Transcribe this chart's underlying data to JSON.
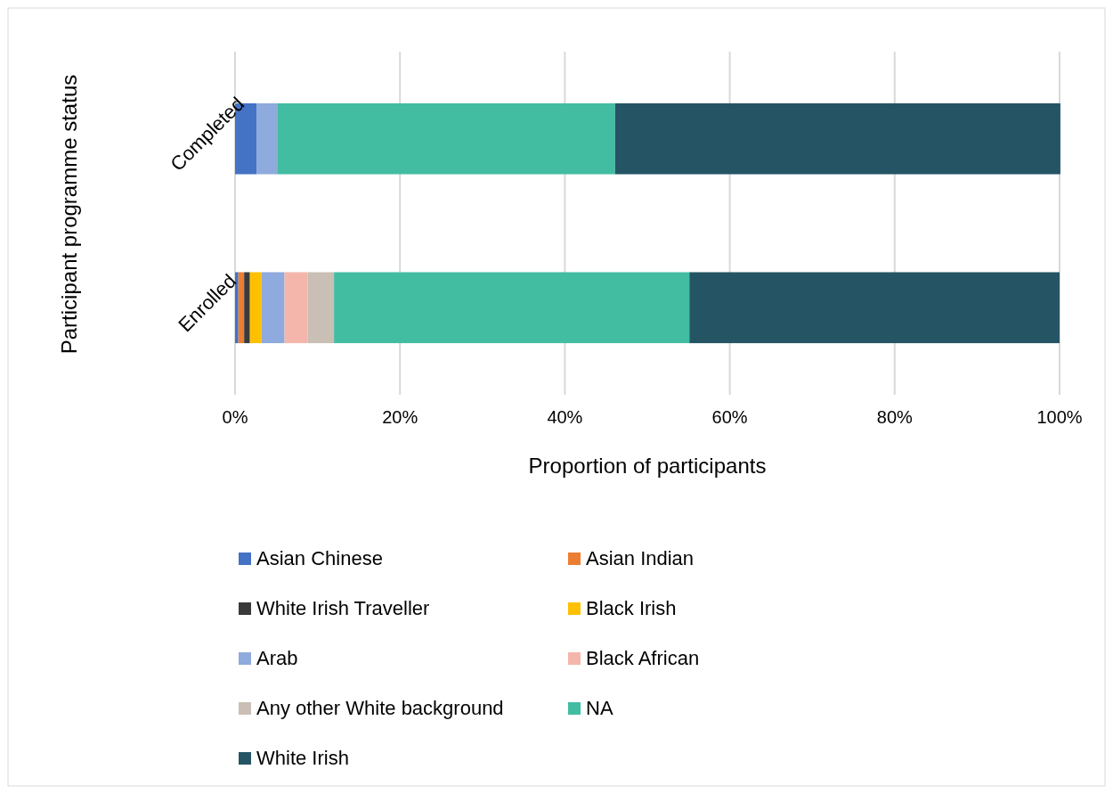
{
  "chart_data": {
    "type": "bar",
    "orientation": "horizontal",
    "stacked": true,
    "xlabel": "Proportion of participants",
    "ylabel": "Participant programme status",
    "categories": [
      "Completed",
      "Enrolled"
    ],
    "series": [
      {
        "name": "Asian Chinese",
        "color": "#4472c4",
        "values": [
          2.6,
          0.4
        ]
      },
      {
        "name": "Asian Indian",
        "color": "#ed7d31",
        "values": [
          0,
          0.7
        ]
      },
      {
        "name": "White Irish Traveller",
        "color": "#3a3a3a",
        "values": [
          0,
          0.7
        ]
      },
      {
        "name": "Black Irish",
        "color": "#ffc000",
        "values": [
          0,
          1.4
        ]
      },
      {
        "name": "Arab",
        "color": "#8faadc",
        "values": [
          2.5,
          2.8
        ]
      },
      {
        "name": "Black African",
        "color": "#f4b6ab",
        "values": [
          0,
          2.8
        ]
      },
      {
        "name": "Any other White background",
        "color": "#c9bfb5",
        "values": [
          0,
          3.2
        ]
      },
      {
        "name": "NA",
        "color": "#42bda2",
        "values": [
          41.0,
          43.1
        ]
      },
      {
        "name": "White Irish",
        "color": "#255565",
        "values": [
          54.0,
          44.9
        ]
      }
    ],
    "xlim": [
      0,
      100
    ],
    "xticks": [
      {
        "value": 0,
        "label": "0%"
      },
      {
        "value": 20,
        "label": "20%"
      },
      {
        "value": 40,
        "label": "40%"
      },
      {
        "value": 60,
        "label": "60%"
      },
      {
        "value": 80,
        "label": "80%"
      },
      {
        "value": 100,
        "label": "100%"
      }
    ],
    "grid": "x",
    "legend": "bottom"
  }
}
